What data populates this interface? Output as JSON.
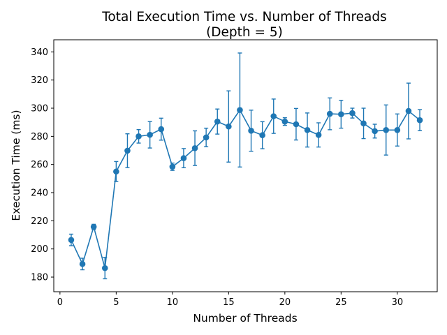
{
  "chart_data": {
    "type": "line",
    "title": "Total Execution Time vs. Number of Threads",
    "subtitle": "(Depth = 5)",
    "xlabel": "Number of Threads",
    "ylabel": "Execution Time (ms)",
    "xlim": [
      -0.55,
      33.55
    ],
    "ylim": [
      169.6,
      348.6
    ],
    "xticks": [
      0,
      5,
      10,
      15,
      20,
      25,
      30
    ],
    "yticks": [
      180,
      200,
      220,
      240,
      260,
      280,
      300,
      320,
      340
    ],
    "grid": false,
    "legend": "none",
    "color": "#1f77b4",
    "markers": "circle",
    "error_bars": true,
    "x": [
      1,
      2,
      3,
      4,
      5,
      6,
      7,
      8,
      9,
      10,
      11,
      12,
      13,
      14,
      15,
      16,
      17,
      18,
      19,
      20,
      21,
      22,
      23,
      24,
      25,
      26,
      27,
      28,
      29,
      30,
      31,
      32
    ],
    "values": [
      206.4,
      189.3,
      215.7,
      186.4,
      255,
      269.8,
      280,
      281.1,
      285.1,
      258.4,
      264.5,
      271.6,
      279.2,
      290.5,
      287,
      298.7,
      284,
      280.8,
      294.3,
      290.5,
      288.6,
      284.5,
      281,
      296,
      295.7,
      296.5,
      289.2,
      283.7,
      284.5,
      284.5,
      298,
      291.5
    ],
    "errors": [
      4.1,
      4.1,
      1.8,
      7.6,
      7.1,
      12,
      4.8,
      9.4,
      7.8,
      2.6,
      6.8,
      12.3,
      6.6,
      8.9,
      25.3,
      40.5,
      14.6,
      9.6,
      12.2,
      2.7,
      11.2,
      12.1,
      8.6,
      11.3,
      9.9,
      3.5,
      10.8,
      4.9,
      17.8,
      11.4,
      19.8,
      7.5
    ]
  }
}
